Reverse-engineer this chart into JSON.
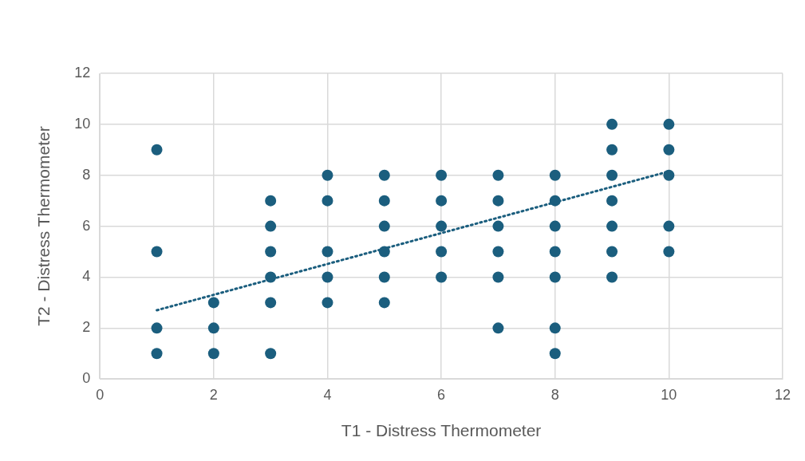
{
  "chart_data": {
    "type": "scatter",
    "xlabel": "T1 - Distress Thermometer",
    "ylabel": "T2 - Distress Thermometer",
    "xlim": [
      0,
      12
    ],
    "xticks": [
      0,
      2,
      4,
      6,
      8,
      10,
      12
    ],
    "ylim": [
      0,
      12
    ],
    "yticks": [
      0,
      2,
      4,
      6,
      8,
      10,
      12
    ],
    "grid": true,
    "marker": "circle",
    "series": [
      {
        "color": "#1b5e7e",
        "x": [
          1,
          1,
          1,
          1,
          2,
          2,
          2,
          3,
          3,
          3,
          3,
          3,
          3,
          4,
          4,
          4,
          4,
          4,
          5,
          5,
          5,
          5,
          5,
          5,
          6,
          6,
          6,
          6,
          6,
          7,
          7,
          7,
          7,
          7,
          7,
          8,
          8,
          8,
          8,
          8,
          8,
          8,
          9,
          9,
          9,
          9,
          9,
          9,
          9,
          10,
          10,
          10,
          10,
          10
        ],
        "values": [
          9,
          5,
          2,
          1,
          3,
          2,
          1,
          7,
          6,
          5,
          4,
          3,
          1,
          8,
          7,
          5,
          4,
          3,
          8,
          7,
          6,
          5,
          4,
          3,
          8,
          7,
          6,
          5,
          4,
          8,
          7,
          6,
          5,
          4,
          2,
          8,
          7,
          6,
          5,
          4,
          2,
          1,
          10,
          9,
          8,
          7,
          6,
          5,
          4,
          10,
          9,
          8,
          6,
          5
        ]
      },
      {
        "type": "line",
        "color": "#1b5e7e",
        "x": [
          1,
          10
        ],
        "values": [
          2.7,
          8.15
        ],
        "marker": "none",
        "line_style": "dotted"
      }
    ]
  }
}
